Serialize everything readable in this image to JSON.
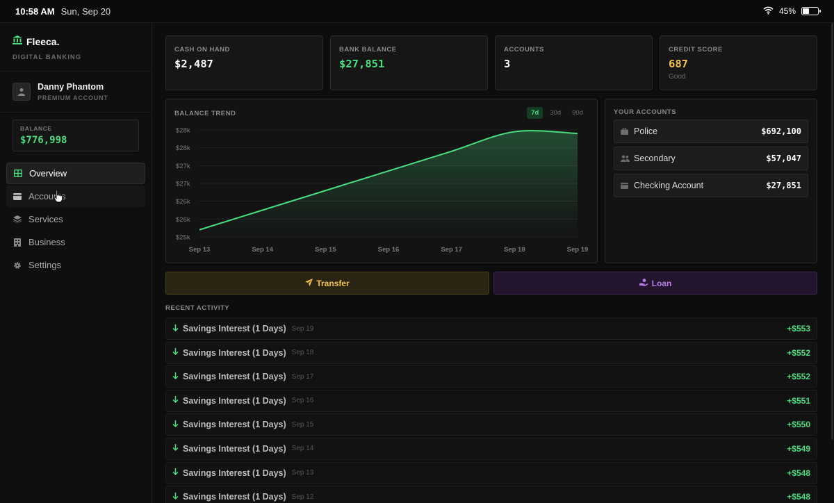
{
  "status": {
    "time": "10:58 AM",
    "date": "Sun, Sep 20",
    "battery": "45%",
    "battery_level": 0.45
  },
  "brand": {
    "name": "Fleeca.",
    "subtitle": "DIGITAL BANKING"
  },
  "user": {
    "name": "Danny Phantom",
    "tier": "PREMIUM ACCOUNT"
  },
  "sidebar_balance": {
    "label": "BALANCE",
    "value": "$776,998"
  },
  "nav": [
    {
      "label": "Overview",
      "icon": "grid-icon"
    },
    {
      "label": "Accounts",
      "icon": "card-icon"
    },
    {
      "label": "Services",
      "icon": "layers-icon"
    },
    {
      "label": "Business",
      "icon": "building-icon"
    },
    {
      "label": "Settings",
      "icon": "gear-icon"
    }
  ],
  "stats": [
    {
      "label": "CASH ON HAND",
      "value": "$2,487",
      "color": "#ffffff"
    },
    {
      "label": "BANK BALANCE",
      "value": "$27,851",
      "color": "#4ade80"
    },
    {
      "label": "ACCOUNTS",
      "value": "3",
      "color": "#ffffff"
    },
    {
      "label": "CREDIT SCORE",
      "value": "687",
      "sub": "Good",
      "color": "#f2c14e"
    }
  ],
  "trend": {
    "title": "BALANCE TREND",
    "ranges": [
      "7d",
      "30d",
      "90d"
    ],
    "active_range": "7d"
  },
  "chart_data": {
    "type": "area",
    "title": "BALANCE TREND",
    "categories": [
      "Sep 13",
      "Sep 14",
      "Sep 15",
      "Sep 16",
      "Sep 17",
      "Sep 18",
      "Sep 19"
    ],
    "values": [
      25150,
      25700,
      26250,
      26800,
      27350,
      27900,
      27850
    ],
    "y_tick_labels": [
      "$28k",
      "$28k",
      "$27k",
      "$27k",
      "$26k",
      "$26k",
      "$25k"
    ],
    "ylim": [
      24950,
      27950
    ],
    "grid": true,
    "series_color": "#4ade80"
  },
  "accounts": {
    "title": "YOUR ACCOUNTS",
    "items": [
      {
        "name": "Police",
        "amount": "$692,100",
        "icon": "briefcase-icon"
      },
      {
        "name": "Secondary",
        "amount": "$57,047",
        "icon": "users-icon"
      },
      {
        "name": "Checking Account",
        "amount": "$27,851",
        "icon": "wallet-icon"
      }
    ]
  },
  "actions": {
    "transfer": "Transfer",
    "loan": "Loan"
  },
  "recent": {
    "title": "RECENT ACTIVITY",
    "items": [
      {
        "desc": "Savings Interest (1 Days)",
        "date": "Sep 19",
        "amount": "+$553"
      },
      {
        "desc": "Savings Interest (1 Days)",
        "date": "Sep 18",
        "amount": "+$552"
      },
      {
        "desc": "Savings Interest (1 Days)",
        "date": "Sep 17",
        "amount": "+$552"
      },
      {
        "desc": "Savings Interest (1 Days)",
        "date": "Sep 16",
        "amount": "+$551"
      },
      {
        "desc": "Savings Interest (1 Days)",
        "date": "Sep 15",
        "amount": "+$550"
      },
      {
        "desc": "Savings Interest (1 Days)",
        "date": "Sep 14",
        "amount": "+$549"
      },
      {
        "desc": "Savings Interest (1 Days)",
        "date": "Sep 13",
        "amount": "+$548"
      },
      {
        "desc": "Savings Interest (1 Days)",
        "date": "Sep 12",
        "amount": "+$548"
      }
    ]
  }
}
